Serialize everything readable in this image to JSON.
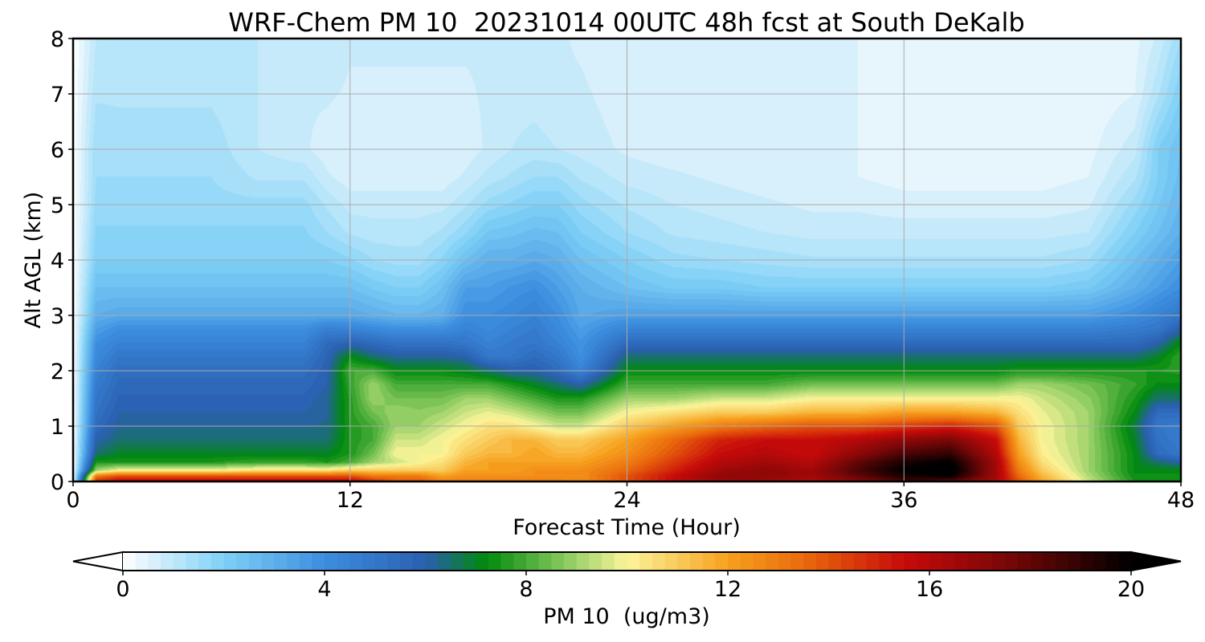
{
  "chart_data": {
    "type": "heatmap",
    "title": "WRF-Chem PM 10  20231014 00UTC 48h fcst at South DeKalb",
    "xlabel": "Forecast Time (Hour)",
    "ylabel": "Alt AGL (km)",
    "xlim": [
      0,
      48
    ],
    "ylim": [
      0,
      8
    ],
    "xticks": [
      0,
      12,
      24,
      36,
      48
    ],
    "yticks": [
      0,
      1,
      2,
      3,
      4,
      5,
      6,
      7,
      8
    ],
    "grid": true,
    "colorbar": {
      "label": "PM 10  (ug/m3)",
      "min": 0,
      "max": 20,
      "ticks": [
        0,
        4,
        8,
        12,
        16,
        20
      ],
      "extend": "both",
      "color_stops": [
        {
          "value": 0,
          "color": "#ffffff"
        },
        {
          "value": 2,
          "color": "#7fd0f6"
        },
        {
          "value": 4,
          "color": "#3c8ee0"
        },
        {
          "value": 6,
          "color": "#2a5fb0"
        },
        {
          "value": 7.2,
          "color": "#008a0c"
        },
        {
          "value": 9,
          "color": "#9ed36b"
        },
        {
          "value": 10,
          "color": "#fbf59a"
        },
        {
          "value": 12,
          "color": "#f7a11e"
        },
        {
          "value": 13.5,
          "color": "#ea6a0c"
        },
        {
          "value": 15.5,
          "color": "#c80a0a"
        },
        {
          "value": 17.5,
          "color": "#7a0707"
        },
        {
          "value": 20,
          "color": "#000000"
        }
      ]
    },
    "x": [
      0,
      1,
      2,
      4,
      6,
      8,
      10,
      11,
      12,
      13,
      14,
      15,
      16,
      17,
      18,
      19,
      20,
      21,
      22,
      24,
      26,
      28,
      30,
      32,
      34,
      36,
      38,
      40,
      41,
      42,
      44,
      46,
      47,
      48
    ],
    "y": [
      0,
      0.1,
      0.2,
      0.35,
      0.5,
      0.75,
      1,
      1.25,
      1.5,
      1.75,
      2,
      2.25,
      2.5,
      2.75,
      3,
      3.5,
      4,
      4.5,
      5,
      5.5,
      6,
      7,
      8
    ],
    "z": [
      [
        0,
        0,
        0,
        0,
        0,
        0,
        0,
        0,
        0,
        0,
        0,
        0,
        0,
        0,
        0,
        0,
        0,
        0,
        0,
        0,
        0,
        0,
        0
      ],
      [
        15,
        13,
        9,
        7.5,
        6.5,
        6,
        5.5,
        5.2,
        5,
        4.8,
        4.5,
        4.2,
        4,
        3.5,
        3,
        2.5,
        2,
        1.8,
        1.6,
        1.5,
        1.5,
        1.2,
        1
      ],
      [
        16,
        14,
        10,
        7.5,
        7,
        6.5,
        6.2,
        6,
        5.8,
        5.6,
        5.4,
        5,
        4.5,
        4,
        3.2,
        2.5,
        2,
        1.8,
        1.6,
        1.5,
        1.4,
        1.2,
        1
      ],
      [
        16,
        14,
        10,
        7.5,
        7,
        6.5,
        6.2,
        6,
        5.8,
        5.6,
        5.4,
        5,
        4.5,
        4,
        3.2,
        2.5,
        2,
        1.8,
        1.6,
        1.5,
        1.4,
        1.2,
        1
      ],
      [
        16,
        14,
        10,
        7.5,
        7,
        6.5,
        6.2,
        6,
        5.8,
        5.6,
        5.4,
        5,
        4.5,
        4,
        3.2,
        2.5,
        2,
        1.8,
        1.6,
        1.5,
        1.4,
        1.2,
        1
      ],
      [
        16,
        14,
        10.5,
        7.8,
        7,
        6.5,
        6.2,
        6,
        5.8,
        5.6,
        5.4,
        5,
        4.5,
        4,
        3.2,
        2.5,
        2,
        1.8,
        1.6,
        1.2,
        1,
        1,
        1
      ],
      [
        16,
        14,
        10.5,
        7.8,
        7,
        6.5,
        6.2,
        6,
        5.8,
        5.6,
        5.4,
        5,
        4.5,
        4,
        3.2,
        2.5,
        2,
        1.8,
        1.6,
        1.2,
        0.8,
        0.8,
        1
      ],
      [
        16,
        14,
        10.5,
        7.5,
        7,
        6.5,
        6.3,
        6.2,
        6.2,
        6,
        5.9,
        5.8,
        5.5,
        4.6,
        3.2,
        2.5,
        2,
        1.5,
        1.2,
        0.8,
        0.6,
        0.8,
        1
      ],
      [
        16,
        14,
        11,
        8,
        7.5,
        7.5,
        7.5,
        7.6,
        7.6,
        7.8,
        8,
        7.2,
        5.8,
        4.5,
        3.2,
        2.5,
        1.8,
        1.2,
        0.9,
        0.6,
        0.5,
        0.7,
        0.8
      ],
      [
        15,
        13,
        11,
        9,
        8.5,
        8,
        8,
        8.5,
        9,
        9,
        8,
        6.5,
        5.5,
        4.2,
        3,
        2.2,
        1.5,
        1.1,
        0.9,
        0.6,
        0.5,
        0.7,
        0.8
      ],
      [
        14,
        13,
        11,
        9.5,
        10,
        9.5,
        9,
        9,
        8.5,
        8,
        7.2,
        6.2,
        5.2,
        4,
        2.8,
        2,
        1.4,
        1.1,
        0.9,
        0.6,
        0.5,
        0.7,
        0.8
      ],
      [
        14,
        13,
        11,
        10,
        10,
        9.5,
        9,
        8.8,
        8.5,
        8,
        7.2,
        6.2,
        5.2,
        4,
        2.8,
        2,
        1.4,
        1.1,
        0.9,
        0.6,
        0.5,
        0.7,
        0.8
      ],
      [
        13,
        12,
        11,
        10.5,
        10,
        10,
        9.5,
        9,
        8.5,
        8,
        7.2,
        6.2,
        5.2,
        4,
        3,
        2.5,
        1.8,
        1.3,
        0.9,
        0.6,
        0.5,
        0.7,
        0.8
      ],
      [
        13,
        12.5,
        12,
        11.5,
        11,
        10.5,
        10,
        9.5,
        9,
        8,
        7,
        6,
        5,
        4.5,
        4,
        3.5,
        2.5,
        1.7,
        1.2,
        0.8,
        0.6,
        0.7,
        0.8
      ],
      [
        13,
        12.5,
        12,
        12,
        11.5,
        11,
        10.5,
        9.8,
        9,
        8,
        6.5,
        5,
        4.5,
        4.2,
        4,
        3.5,
        3,
        2.3,
        1.6,
        1.1,
        0.8,
        0.8,
        0.8
      ],
      [
        13,
        12.5,
        12,
        12,
        11.5,
        11.5,
        10.5,
        9.5,
        8.5,
        7.5,
        6,
        5,
        4.8,
        4.5,
        4.2,
        3.8,
        3,
        2.4,
        1.8,
        1.3,
        1,
        0.9,
        0.8
      ],
      [
        13,
        12.5,
        12.5,
        12,
        12,
        11.5,
        10,
        9,
        8,
        7,
        6,
        5.5,
        5,
        4.8,
        4.5,
        4,
        3.2,
        2.6,
        2,
        1.5,
        1.1,
        0.9,
        0.8
      ],
      [
        13,
        12.5,
        12.5,
        12,
        11.5,
        11,
        9.5,
        8.5,
        7.5,
        6.5,
        5.5,
        5,
        4.5,
        4.2,
        4,
        3.5,
        3,
        2.5,
        2,
        1.5,
        1,
        0.8,
        0.8
      ],
      [
        12.5,
        12.5,
        12.5,
        12,
        11.5,
        11,
        9.5,
        8.5,
        7.5,
        6,
        4.5,
        4,
        3.8,
        3.5,
        3.2,
        3,
        2.5,
        2,
        1.6,
        1.2,
        0.9,
        0.8,
        0.7
      ],
      [
        14,
        14,
        13.5,
        13,
        12.5,
        12,
        11,
        10,
        9,
        8,
        7.2,
        6.5,
        5.5,
        4.5,
        3.5,
        2.5,
        2,
        1.5,
        1.2,
        0.9,
        0.7,
        0.6,
        0.5
      ],
      [
        15.5,
        15.5,
        15,
        14.5,
        14,
        13.5,
        12,
        10.5,
        9,
        8,
        7.2,
        6.5,
        5.5,
        4.5,
        3.5,
        2.2,
        1.6,
        1.2,
        1,
        0.8,
        0.6,
        0.5,
        0.5
      ],
      [
        16.5,
        17,
        16.5,
        16,
        15.5,
        15,
        13,
        11,
        9.5,
        8,
        7.2,
        6.5,
        5.5,
        4.5,
        3.5,
        2.2,
        1.5,
        1.1,
        0.9,
        0.7,
        0.6,
        0.5,
        0.5
      ],
      [
        16.5,
        17,
        17,
        16.5,
        16,
        15.5,
        13.5,
        11,
        9.5,
        8,
        7.2,
        6.5,
        5.5,
        4.5,
        3.5,
        2,
        1.4,
        1,
        0.8,
        0.6,
        0.5,
        0.5,
        0.5
      ],
      [
        16,
        16.5,
        16.5,
        16,
        15.5,
        15.5,
        14,
        11.5,
        10,
        8.5,
        7.2,
        6.5,
        5.5,
        4.5,
        3.5,
        2,
        1.3,
        0.9,
        0.7,
        0.5,
        0.5,
        0.5,
        0.5
      ],
      [
        17,
        18,
        18.5,
        18,
        17,
        16,
        14,
        11.5,
        10,
        8.5,
        7.2,
        6.5,
        5.5,
        4.5,
        3.5,
        2,
        1.3,
        0.9,
        0.7,
        0.5,
        0.5,
        0.5,
        0.5
      ],
      [
        18.5,
        19.5,
        20,
        19.5,
        18.5,
        17,
        14.5,
        12,
        10,
        8.5,
        7.2,
        6.5,
        5.5,
        4.5,
        3.5,
        2,
        1.3,
        0.9,
        0.6,
        0.4,
        0.4,
        0.3,
        0.3
      ],
      [
        18,
        20,
        20.5,
        20,
        19,
        17.5,
        15,
        12,
        10,
        8.5,
        7.2,
        6.5,
        5.5,
        4.5,
        3.5,
        2,
        1.3,
        0.9,
        0.6,
        0.4,
        0.3,
        0.3,
        0.3
      ],
      [
        16,
        16.5,
        16.5,
        16.5,
        16,
        15.5,
        14,
        11.5,
        10,
        8.5,
        7.2,
        6.5,
        5.5,
        4.5,
        3.5,
        2,
        1.3,
        0.9,
        0.6,
        0.4,
        0.3,
        0.3,
        0.3
      ],
      [
        14,
        13.5,
        13,
        12.5,
        12,
        11.5,
        11,
        10.5,
        10,
        9,
        7.5,
        6.5,
        5.5,
        4.5,
        3.5,
        2,
        1.3,
        0.9,
        0.6,
        0.4,
        0.3,
        0.3,
        0.3
      ],
      [
        12,
        11.5,
        11,
        10.5,
        10.2,
        10,
        10,
        9.8,
        9.5,
        9,
        7.5,
        6.5,
        5.5,
        4.5,
        3.5,
        2,
        1.3,
        0.9,
        0.6,
        0.4,
        0.3,
        0.3,
        0.3
      ],
      [
        9.5,
        9.2,
        9,
        9,
        9,
        9,
        9,
        9,
        8.8,
        8.5,
        7.5,
        6.5,
        5.5,
        4.5,
        3.5,
        2.2,
        1.5,
        1,
        0.7,
        0.5,
        0.4,
        0.3,
        0.3
      ],
      [
        7.5,
        7.3,
        7.2,
        7.2,
        7.2,
        7,
        6.8,
        7.2,
        7.5,
        7.8,
        7.5,
        6.5,
        5.5,
        4.8,
        4,
        3,
        2.5,
        2,
        1.6,
        1.2,
        0.9,
        0.5,
        0.4
      ],
      [
        7.5,
        7.3,
        7.2,
        6.5,
        5.5,
        5.2,
        5,
        5.5,
        6.5,
        7.2,
        7.5,
        7,
        6,
        5,
        4.5,
        3.5,
        3,
        2.5,
        2.2,
        2,
        2,
        1.2,
        0.8
      ],
      [
        7.5,
        7.3,
        7.2,
        6,
        5,
        4.8,
        4.8,
        5.5,
        6.5,
        7.2,
        7.6,
        7.8,
        7.2,
        6,
        5,
        4,
        3.5,
        3,
        2.8,
        2.6,
        2.5,
        2,
        1.5
      ]
    ]
  }
}
